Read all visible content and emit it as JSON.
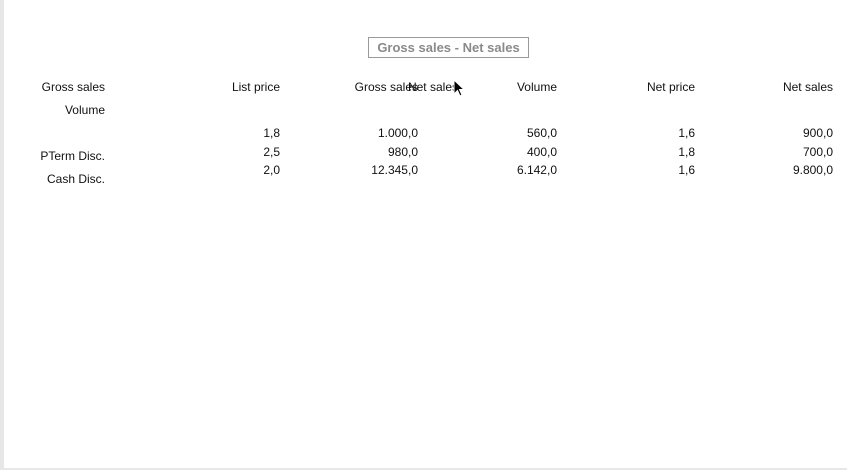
{
  "report": {
    "title": "Gross sales - Net sales"
  },
  "row_labels": [
    "Gross sales",
    "Volume",
    "PTerm Disc.",
    "Cash Disc."
  ],
  "columns": [
    "List price",
    "Gross sales",
    "Net sales",
    "Volume",
    "Net price",
    "Net sales"
  ],
  "rows": [
    {
      "list_price": "1,8",
      "gross_sales": "1.000,0",
      "volume": "560,0",
      "net_price": "1,6",
      "net_sales": "900,0"
    },
    {
      "list_price": "2,5",
      "gross_sales": "980,0",
      "volume": "400,0",
      "net_price": "1,8",
      "net_sales": "700,0"
    },
    {
      "list_price": "2,0",
      "gross_sales": "12.345,0",
      "volume": "6.142,0",
      "net_price": "1,6",
      "net_sales": "9.800,0"
    }
  ],
  "colors": {
    "title_text": "#8a8a8a",
    "title_border": "#9a9a9a",
    "body_text": "#111111",
    "edge": "#e7e7e7"
  },
  "icons": {
    "cursor": "mouse-pointer-icon"
  }
}
